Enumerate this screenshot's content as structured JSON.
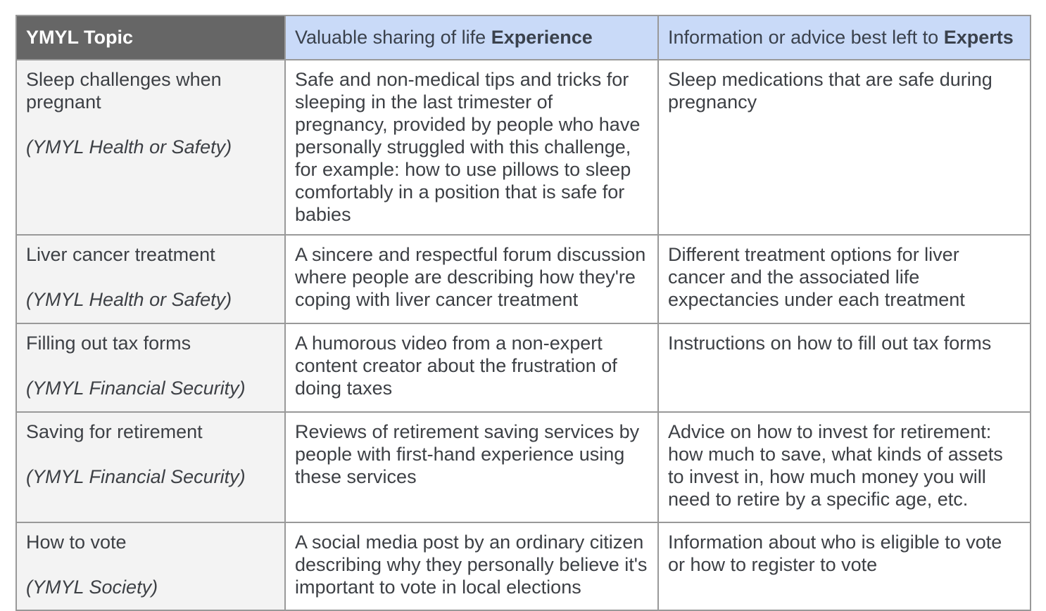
{
  "colors": {
    "header_dark_bg": "#666666",
    "header_dark_text": "#ffffff",
    "header_blue_bg": "#c9daf8",
    "topic_column_bg": "#f3f3f3",
    "cell_bg": "#ffffff",
    "border": "#999999",
    "body_text": "#3d4045"
  },
  "table": {
    "headers": {
      "topic": "YMYL Topic",
      "experience_prefix": "Valuable sharing of life ",
      "experience_bold": "Experience",
      "experts_prefix": "Information or advice best left to ",
      "experts_bold": "Experts"
    },
    "rows": [
      {
        "topic": "Sleep challenges when pregnant",
        "category": "(YMYL Health or Safety)",
        "experience": "Safe and non-medical tips and tricks for sleeping in the last trimester of pregnancy, provided by people who have personally struggled with this challenge, for example: how to use pillows to sleep comfortably in a position that is safe for babies",
        "experts": "Sleep medications that are safe during pregnancy"
      },
      {
        "topic": "Liver cancer treatment",
        "category": "(YMYL Health or Safety)",
        "experience": "A sincere and respectful forum discussion where people are describing how they're coping with liver cancer treatment",
        "experts": "Different treatment options for liver cancer and the associated life expectancies under each treatment"
      },
      {
        "topic": "Filling out tax forms",
        "category": "(YMYL Financial Security)",
        "experience": "A humorous video from a non-expert content creator about the frustration of doing taxes",
        "experts": "Instructions on how to fill out tax forms"
      },
      {
        "topic": "Saving for retirement",
        "category": "(YMYL Financial Security)",
        "experience": "Reviews of retirement saving services by people with first-hand experience using these services",
        "experts": "Advice on how to invest for retirement: how much to save, what kinds of assets to invest in, how much money you will need to retire by a specific age, etc.",
        "experts_note": ""
      },
      {
        "topic": "How to vote",
        "category": "(YMYL Society)",
        "experience": "A social media post by an ordinary citizen describing why they personally believe it's important to vote in local elections",
        "experts": "Information about who is eligible to vote or how to register to vote"
      }
    ]
  }
}
